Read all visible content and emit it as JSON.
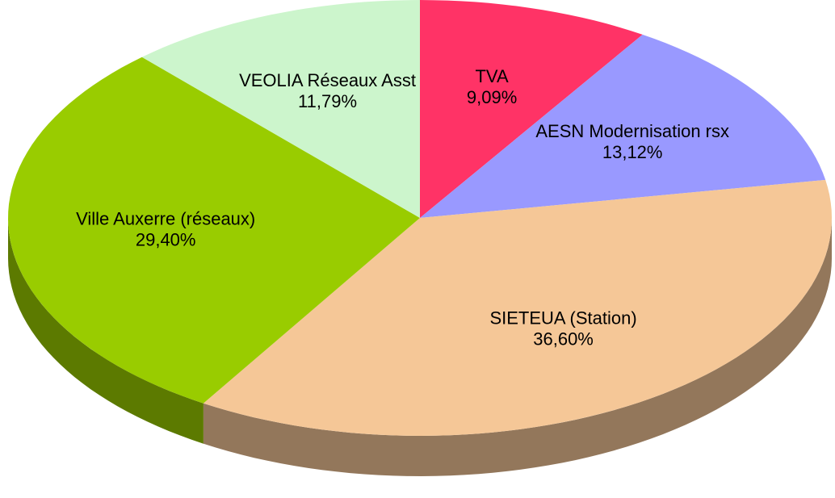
{
  "chart_data": {
    "type": "pie",
    "categories": [
      "TVA",
      "AESN Modernisation rsx",
      "SIETEUA (Station)",
      "Ville Auxerre (réseaux)",
      "VEOLIA Réseaux Asst"
    ],
    "values": [
      9.09,
      13.12,
      36.6,
      29.4,
      11.79
    ],
    "value_labels": [
      "9,09%",
      "13,12%",
      "36,60%",
      "29,40%",
      "11,79%"
    ],
    "colors": [
      "#ff3366",
      "#9999ff",
      "#f5c797",
      "#99cc00",
      "#ccf5cc"
    ]
  }
}
